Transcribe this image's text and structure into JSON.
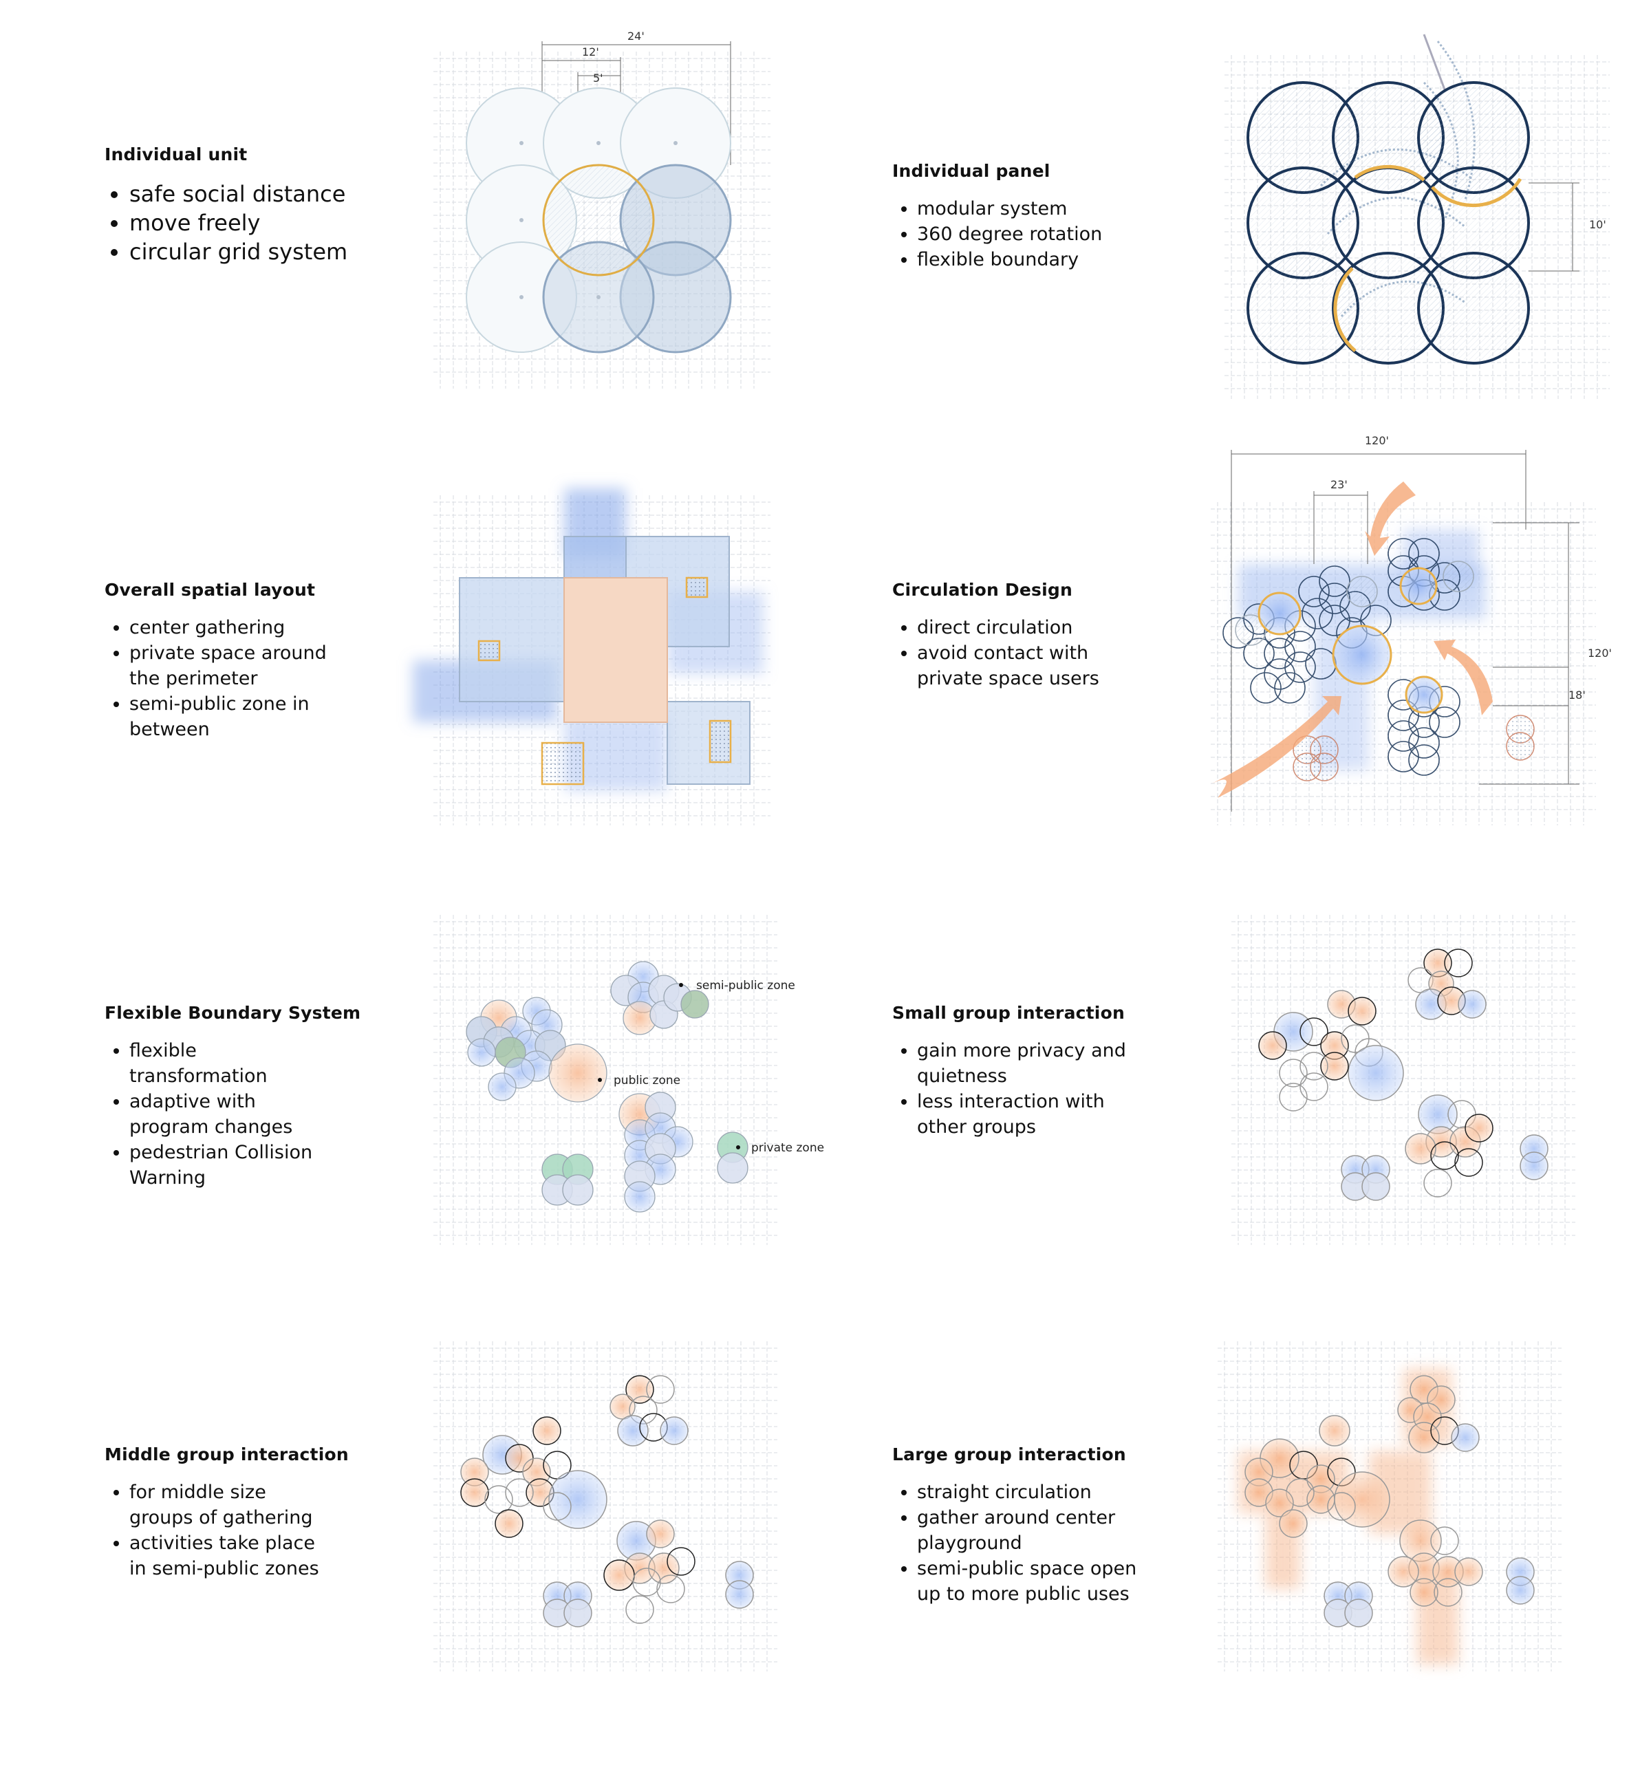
{
  "panels": [
    {
      "title": "Individual unit",
      "bullets": [
        "safe social distance",
        "move freely",
        "circular grid system"
      ]
    },
    {
      "title": "Individual panel",
      "bullets": [
        "modular system",
        "360 degree rotation",
        "flexible boundary"
      ]
    },
    {
      "title": "Overall spatial layout",
      "bullets": [
        "center gathering",
        "private space around",
        "the perimeter",
        "semi-public zone in",
        "between"
      ]
    },
    {
      "title": "Circulation Design",
      "bullets": [
        "direct circulation",
        "avoid contact with",
        "private space users"
      ]
    },
    {
      "title": "Flexible Boundary System",
      "bullets": [
        "flexible",
        "transformation",
        "adaptive with",
        "program changes",
        "pedestrian Collision",
        "Warning"
      ]
    },
    {
      "title": "Small group interaction",
      "bullets": [
        "gain more privacy and",
        "quietness",
        "less interaction with",
        "other groups"
      ]
    },
    {
      "title": "Middle group interaction",
      "bullets": [
        "for middle size",
        "groups of gathering",
        "activities take place",
        "in semi-public zones"
      ]
    },
    {
      "title": "Large group interaction",
      "bullets": [
        "straight circulation",
        "gather around center",
        "playground",
        "semi-public space open",
        "up to more public uses"
      ]
    }
  ],
  "dimensions": {
    "unit_a": "24'",
    "unit_b": "12'",
    "unit_c": "5'",
    "panel_a": "10'",
    "circ_a": "120'",
    "circ_b": "23'",
    "circ_c": "120'",
    "circ_d": "18'"
  },
  "zone_labels": {
    "semi_public": "semi-public zone",
    "public": "public zone",
    "private": "private zone"
  },
  "colors": {
    "navy": "#1b3558",
    "gold": "#e8b04a",
    "blue": "#7f9ff0",
    "peach": "#f4b489",
    "green": "#8fcaa6",
    "grid": "#c9ced6"
  }
}
